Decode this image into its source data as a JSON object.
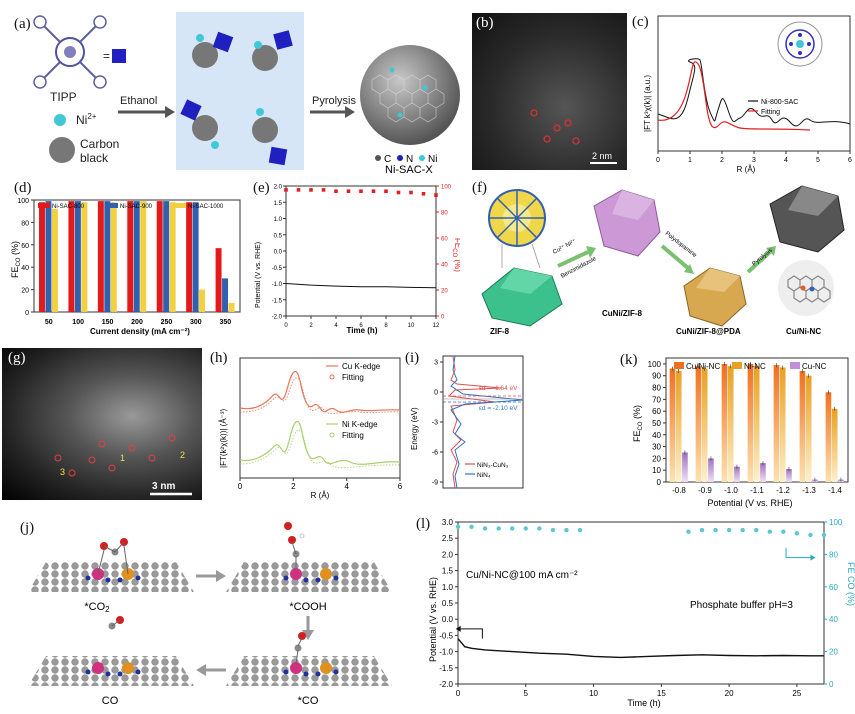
{
  "panel_labels": {
    "a": "(a)",
    "b": "(b)",
    "c": "(c)",
    "d": "(d)",
    "e": "(e)",
    "f": "(f)",
    "g": "(g)",
    "h": "(h)",
    "i": "(i)",
    "j": "(j)",
    "k": "(k)",
    "l": "(l)"
  },
  "panel_a": {
    "tipp": "TIPP",
    "ni": "Ni",
    "ni_sup": "2+",
    "carbon1": "Carbon",
    "carbon2": "black",
    "step1": "Ethanol",
    "step2": "Pyrolysis",
    "legend_c": "C",
    "legend_n": "N",
    "legend_ni": "Ni",
    "product": "Ni-SAC-X",
    "colors": {
      "carbon": "#6e6e6e",
      "ni": "#3fc8d8",
      "tipp": "#2020c0",
      "bg": "#d6e6f7"
    }
  },
  "panel_b": {
    "scale": "2 nm"
  },
  "panel_c": {
    "ylabel": "|FT k³χ(k)| (a.u.)",
    "xlabel": "R (Å)",
    "legend": [
      "Ni-800-SAC",
      "Fitting"
    ],
    "xticks": [
      "0",
      "1",
      "2",
      "3",
      "4",
      "5",
      "6"
    ]
  },
  "panel_d": {
    "ylabel_main": "FE",
    "ylabel_sub": "CO",
    "ylabel_unit": " (%)",
    "xlabel": "Current density (mA cm⁻²)",
    "legend": [
      "Ni-SAC-800",
      "Ni-SAC-900",
      "Ni-SAC-1000"
    ],
    "yticks": [
      "0",
      "20",
      "40",
      "60",
      "80",
      "100"
    ],
    "chart_data": {
      "type": "bar",
      "categories": [
        "50",
        "100",
        "150",
        "200",
        "250",
        "300",
        "350"
      ],
      "series": [
        {
          "name": "Ni-SAC-800",
          "values": [
            98,
            99,
            99,
            99,
            99,
            98,
            57
          ],
          "color": "#e31a1c"
        },
        {
          "name": "Ni-SAC-900",
          "values": [
            99,
            99,
            99,
            99,
            99,
            98,
            30
          ],
          "color": "#3060b0"
        },
        {
          "name": "Ni-SAC-1000",
          "values": [
            92,
            98,
            98,
            99,
            98,
            20,
            8
          ],
          "color": "#f2d040"
        }
      ],
      "ylim": [
        0,
        100
      ]
    }
  },
  "panel_e": {
    "ylabel_left": "Potential (V vs. RHE)",
    "ylabel_right_main": "FE",
    "ylabel_right_sub": "CO",
    "ylabel_right_unit": " (%)",
    "xlabel": "Time (h)",
    "yticks_left": [
      "-2.0",
      "-1.5",
      "-1.0",
      "-0.5",
      "0.0",
      "0.5",
      "1.0",
      "1.5",
      "2.0"
    ],
    "yticks_right": [
      "0",
      "20",
      "40",
      "60",
      "80",
      "100"
    ],
    "xticks": [
      "0",
      "2",
      "4",
      "6",
      "8",
      "10",
      "12"
    ],
    "chart_data": {
      "type": "line",
      "xlim": [
        0,
        12
      ],
      "ylim_left": [
        -2.0,
        2.0
      ],
      "ylim_right": [
        0,
        100
      ],
      "potential": {
        "x": [
          0,
          2,
          4,
          6,
          8,
          10,
          12
        ],
        "y": [
          -1.0,
          -1.05,
          -1.08,
          -1.1,
          -1.1,
          -1.12,
          -1.13
        ]
      },
      "fe_co": {
        "x": [
          0,
          1,
          2,
          3,
          4,
          5,
          6,
          7,
          8,
          9,
          10,
          11,
          12
        ],
        "y": [
          97,
          97,
          97,
          97,
          96,
          96,
          96,
          96,
          96,
          95,
          95,
          94,
          93
        ]
      }
    }
  },
  "panel_f": {
    "zif8": "ZIF-8",
    "cuni_zif8": "CuNi/ZIF-8",
    "cuni_pda": "CuNi/ZIF-8@PDA",
    "product": "Cu/Ni-NC",
    "arrow1_top": "Cu²⁺ Ni²⁺",
    "arrow1_bottom": "Benzimidazole",
    "arrow2": "Polydopamine",
    "arrow3": "Pyrolysis"
  },
  "panel_g": {
    "scale": "3 nm",
    "marks": [
      "1",
      "2",
      "3"
    ]
  },
  "panel_h": {
    "ylabel": "|FT(k²χ(k))| (Å⁻³)",
    "xlabel": "R (Å)",
    "xticks": [
      "0",
      "2",
      "4",
      "6"
    ],
    "legend_cu": [
      "Cu K-edge",
      "Fitting"
    ],
    "legend_ni": [
      "Ni K-edge",
      "Fitting"
    ]
  },
  "panel_i": {
    "ylabel": "Energy (eV)",
    "yticks": [
      "3",
      "0",
      "-3",
      "-6",
      "-9"
    ],
    "ed1": "εd = -1.64 eV",
    "ed2": "εd = -2.10 eV",
    "legend": [
      "NiN₃-CuN₃",
      "NiN₄"
    ]
  },
  "panel_k": {
    "ylabel_main": "FE",
    "ylabel_sub": "CO",
    "ylabel_unit": " (%)",
    "xlabel": "Potential (V vs. RHE)",
    "yticks": [
      "0",
      "10",
      "20",
      "30",
      "40",
      "50",
      "60",
      "70",
      "80",
      "90",
      "100"
    ],
    "legend": [
      "Cu/Ni-NC",
      "Ni-NC",
      "Cu-NC"
    ],
    "chart_data": {
      "type": "bar",
      "categories": [
        "-0.8",
        "-0.9",
        "-1.0",
        "-1.1",
        "-1.2",
        "-1.3",
        "-1.4"
      ],
      "series": [
        {
          "name": "Cu/Ni-NC",
          "values": [
            96,
            98,
            100,
            100,
            99,
            94,
            76
          ]
        },
        {
          "name": "Ni-NC",
          "values": [
            94,
            96,
            98,
            98,
            97,
            90,
            62
          ]
        },
        {
          "name": "Cu-NC",
          "values": [
            25,
            20,
            13,
            16,
            11,
            2,
            2
          ]
        }
      ],
      "ylim": [
        0,
        105
      ]
    }
  },
  "panel_j": {
    "s1": "*CO",
    "s1_sub": "2",
    "s2": "*COOH",
    "s3": "CO",
    "s4": "*CO"
  },
  "panel_l": {
    "ylabel_left": "Potential (V vs. RHE)",
    "ylabel_right": "FE CO (%)",
    "xlabel": "Time (h)",
    "note": "Cu/Ni-NC@100 mA cm⁻²",
    "buffer": "Phosphate buffer pH=3",
    "yticks_left": [
      "-2.0",
      "-1.5",
      "-1.0",
      "-0.5",
      "0.0",
      "0.5",
      "1.0",
      "1.5",
      "2.0",
      "2.5",
      "3.0"
    ],
    "yticks_right": [
      "0",
      "20",
      "40",
      "60",
      "80",
      "100"
    ],
    "xticks": [
      "0",
      "5",
      "10",
      "15",
      "20",
      "25"
    ],
    "chart_data": {
      "type": "line",
      "xlim": [
        0,
        27
      ],
      "ylim_left": [
        -2.0,
        3.0
      ],
      "ylim_right": [
        0,
        100
      ],
      "potential": {
        "x": [
          0,
          0.5,
          1,
          2,
          4,
          6,
          8,
          10,
          12,
          14,
          16,
          18,
          20,
          22,
          24,
          26,
          27
        ],
        "y": [
          -0.6,
          -0.85,
          -0.9,
          -0.95,
          -1.0,
          -1.05,
          -1.08,
          -1.15,
          -1.18,
          -1.15,
          -1.12,
          -1.1,
          -1.12,
          -1.13,
          -1.12,
          -1.13,
          -1.13
        ]
      },
      "fe_co": {
        "x": [
          0,
          1,
          2,
          3,
          4,
          5,
          6,
          7,
          8,
          9,
          17,
          18,
          19,
          20,
          21,
          22,
          23,
          24,
          25,
          26,
          27
        ],
        "y": [
          97,
          97,
          96,
          96,
          96,
          96,
          96,
          95,
          95,
          95,
          94,
          95,
          95,
          95,
          95,
          95,
          94,
          94,
          93,
          92,
          92
        ]
      }
    }
  }
}
